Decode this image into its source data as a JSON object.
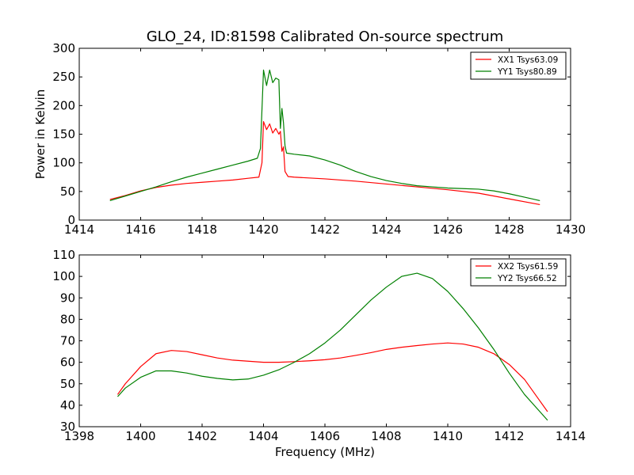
{
  "title": "GLO_24, ID:81598 Calibrated On-source spectrum",
  "chart_data": [
    {
      "type": "line",
      "title": "GLO_24, ID:81598 Calibrated On-source spectrum",
      "xlabel": "",
      "ylabel": "Power in Kelvin",
      "xlim": [
        1414,
        1430
      ],
      "ylim": [
        0,
        300
      ],
      "xticks": [
        1414,
        1416,
        1418,
        1420,
        1422,
        1424,
        1426,
        1428,
        1430
      ],
      "yticks": [
        0,
        50,
        100,
        150,
        200,
        250,
        300
      ],
      "grid": false,
      "legend_position": "top-right",
      "series": [
        {
          "name": "XX1 Tsys63.09",
          "color": "#ff0000",
          "points": [
            [
              1415.0,
              36
            ],
            [
              1415.5,
              43
            ],
            [
              1416.0,
              51
            ],
            [
              1416.5,
              57
            ],
            [
              1417.0,
              61
            ],
            [
              1417.5,
              64
            ],
            [
              1418.0,
              66
            ],
            [
              1418.5,
              68
            ],
            [
              1419.0,
              70
            ],
            [
              1419.5,
              73
            ],
            [
              1419.85,
              75
            ],
            [
              1419.95,
              100
            ],
            [
              1420.0,
              172
            ],
            [
              1420.1,
              158
            ],
            [
              1420.2,
              168
            ],
            [
              1420.3,
              152
            ],
            [
              1420.4,
              160
            ],
            [
              1420.5,
              150
            ],
            [
              1420.55,
              155
            ],
            [
              1420.6,
              120
            ],
            [
              1420.65,
              128
            ],
            [
              1420.7,
              85
            ],
            [
              1420.8,
              76
            ],
            [
              1421.0,
              75
            ],
            [
              1422.0,
              72
            ],
            [
              1423.0,
              68
            ],
            [
              1424.0,
              63
            ],
            [
              1425.0,
              58
            ],
            [
              1426.0,
              53
            ],
            [
              1427.0,
              47
            ],
            [
              1428.0,
              37
            ],
            [
              1429.0,
              27
            ]
          ]
        },
        {
          "name": "YY1 Tsys80.89",
          "color": "#008000",
          "points": [
            [
              1415.0,
              34
            ],
            [
              1415.5,
              42
            ],
            [
              1416.0,
              50
            ],
            [
              1416.5,
              58
            ],
            [
              1417.0,
              67
            ],
            [
              1417.5,
              75
            ],
            [
              1418.0,
              82
            ],
            [
              1418.5,
              89
            ],
            [
              1419.0,
              96
            ],
            [
              1419.5,
              103
            ],
            [
              1419.8,
              108
            ],
            [
              1419.9,
              125
            ],
            [
              1420.0,
              262
            ],
            [
              1420.1,
              235
            ],
            [
              1420.2,
              262
            ],
            [
              1420.3,
              240
            ],
            [
              1420.4,
              248
            ],
            [
              1420.5,
              245
            ],
            [
              1420.55,
              160
            ],
            [
              1420.6,
              195
            ],
            [
              1420.65,
              170
            ],
            [
              1420.7,
              130
            ],
            [
              1420.75,
              117
            ],
            [
              1421.0,
              115
            ],
            [
              1421.5,
              112
            ],
            [
              1422.0,
              105
            ],
            [
              1422.5,
              96
            ],
            [
              1423.0,
              85
            ],
            [
              1423.5,
              76
            ],
            [
              1424.0,
              69
            ],
            [
              1424.5,
              64
            ],
            [
              1425.0,
              60
            ],
            [
              1425.5,
              58
            ],
            [
              1426.0,
              56
            ],
            [
              1426.5,
              55
            ],
            [
              1427.0,
              54
            ],
            [
              1427.5,
              51
            ],
            [
              1428.0,
              46
            ],
            [
              1428.5,
              40
            ],
            [
              1429.0,
              34
            ]
          ]
        }
      ]
    },
    {
      "type": "line",
      "title": "",
      "xlabel": "Frequency (MHz)",
      "ylabel": "",
      "xlim": [
        1398,
        1414
      ],
      "ylim": [
        30,
        110
      ],
      "xticks": [
        1398,
        1400,
        1402,
        1404,
        1406,
        1408,
        1410,
        1412,
        1414
      ],
      "yticks": [
        30,
        40,
        50,
        60,
        70,
        80,
        90,
        100,
        110
      ],
      "grid": false,
      "legend_position": "top-right",
      "series": [
        {
          "name": "XX2 Tsys61.59",
          "color": "#ff0000",
          "points": [
            [
              1399.25,
              45
            ],
            [
              1399.5,
              50
            ],
            [
              1400.0,
              58
            ],
            [
              1400.5,
              64
            ],
            [
              1401.0,
              65.5
            ],
            [
              1401.5,
              65
            ],
            [
              1402.0,
              63.5
            ],
            [
              1402.5,
              62
            ],
            [
              1403.0,
              61
            ],
            [
              1403.5,
              60.5
            ],
            [
              1404.0,
              60
            ],
            [
              1404.5,
              60
            ],
            [
              1405.0,
              60.3
            ],
            [
              1405.5,
              60.7
            ],
            [
              1406.0,
              61.2
            ],
            [
              1406.5,
              62
            ],
            [
              1407.0,
              63.2
            ],
            [
              1407.5,
              64.5
            ],
            [
              1408.0,
              66
            ],
            [
              1408.5,
              67
            ],
            [
              1409.0,
              67.8
            ],
            [
              1409.5,
              68.5
            ],
            [
              1410.0,
              69
            ],
            [
              1410.5,
              68.5
            ],
            [
              1411.0,
              67
            ],
            [
              1411.5,
              64
            ],
            [
              1412.0,
              59
            ],
            [
              1412.5,
              52
            ],
            [
              1413.0,
              42
            ],
            [
              1413.25,
              37
            ]
          ]
        },
        {
          "name": "YY2 Tsys66.52",
          "color": "#008000",
          "points": [
            [
              1399.25,
              44
            ],
            [
              1399.5,
              48
            ],
            [
              1400.0,
              53
            ],
            [
              1400.5,
              56
            ],
            [
              1401.0,
              56
            ],
            [
              1401.5,
              55
            ],
            [
              1402.0,
              53.5
            ],
            [
              1402.5,
              52.5
            ],
            [
              1403.0,
              51.8
            ],
            [
              1403.5,
              52.2
            ],
            [
              1404.0,
              54
            ],
            [
              1404.5,
              56.5
            ],
            [
              1405.0,
              60
            ],
            [
              1405.5,
              64
            ],
            [
              1406.0,
              69
            ],
            [
              1406.5,
              75
            ],
            [
              1407.0,
              82
            ],
            [
              1407.5,
              89
            ],
            [
              1408.0,
              95
            ],
            [
              1408.5,
              100
            ],
            [
              1409.0,
              101.5
            ],
            [
              1409.5,
              99
            ],
            [
              1410.0,
              93
            ],
            [
              1410.5,
              85
            ],
            [
              1411.0,
              76
            ],
            [
              1411.5,
              66
            ],
            [
              1412.0,
              55
            ],
            [
              1412.5,
              45
            ],
            [
              1413.0,
              37
            ],
            [
              1413.25,
              33
            ]
          ]
        }
      ]
    }
  ]
}
